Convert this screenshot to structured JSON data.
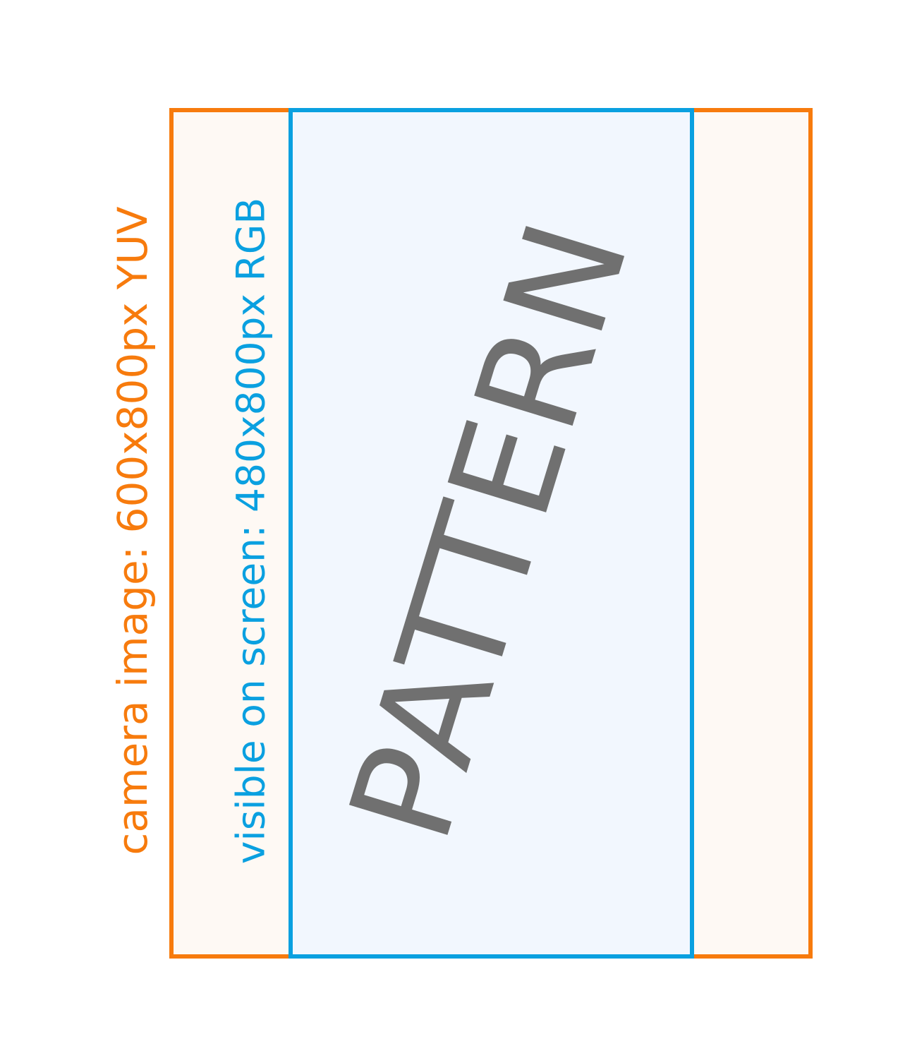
{
  "camera": {
    "label": "camera image: 600x800px YUV",
    "color": "#f77b0d",
    "fill": "#fef9f4"
  },
  "screen": {
    "label": "visible on screen: 480x800px RGB",
    "color": "#0aa0e0",
    "fill": "#f2f7fe"
  },
  "pattern": {
    "text": "PATTERN",
    "color": "#707070"
  }
}
